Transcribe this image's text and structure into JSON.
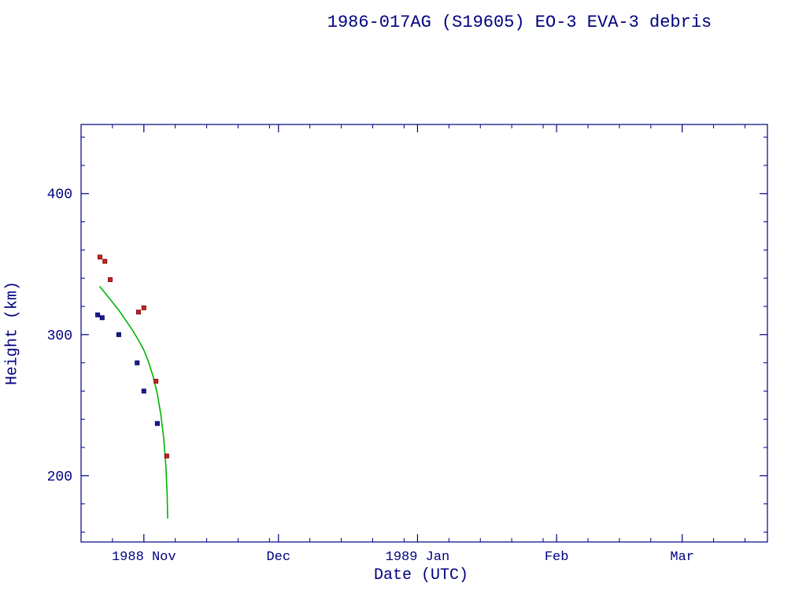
{
  "chart_data": {
    "type": "scatter",
    "title": "1986-017AG (S19605) EO-3 EVA-3 debris",
    "xlabel": "Date (UTC)",
    "ylabel": "Height (km)",
    "marker_size": 5,
    "grid": false,
    "legend": "none",
    "colors": {
      "frame": "#000080",
      "text": "#000080",
      "background": "#ffffff",
      "red_series": "#cc2020",
      "blue_series": "#1c1c8f",
      "green_line": "#00b400"
    },
    "x_axis": {
      "label": "Date (UTC)",
      "unit": "days (0 = plot left edge, approx 1988 Oct 18)",
      "range": [
        0,
        153
      ],
      "major_ticks": [
        {
          "pos": 14,
          "label": "1988 Nov"
        },
        {
          "pos": 44,
          "label": "Dec"
        },
        {
          "pos": 75,
          "label": "1989 Jan"
        },
        {
          "pos": 106,
          "label": "Feb"
        },
        {
          "pos": 134,
          "label": "Mar"
        }
      ],
      "minor_ticks": [
        7,
        21,
        28,
        35,
        42,
        51,
        58,
        65,
        72,
        82,
        89,
        96,
        103,
        113,
        120,
        127,
        141,
        148
      ]
    },
    "y_axis": {
      "label": "Height (km)",
      "range": [
        153,
        449
      ],
      "major_ticks": [
        200,
        300,
        400
      ],
      "minor_ticks": [
        160,
        180,
        220,
        240,
        260,
        280,
        320,
        340,
        360,
        380,
        420,
        440
      ]
    },
    "series": [
      {
        "name": "red-square-points",
        "style": "markers",
        "marker": "filled-square",
        "color": "#cc2020",
        "edge_color": "#801010",
        "points": [
          [
            4.2,
            355
          ],
          [
            5.3,
            352
          ],
          [
            6.5,
            339
          ],
          [
            12.8,
            316
          ],
          [
            14.0,
            319
          ],
          [
            16.7,
            267
          ],
          [
            19.1,
            214
          ]
        ]
      },
      {
        "name": "blue-square-points",
        "style": "markers",
        "marker": "filled-square",
        "color": "#1c1c8f",
        "edge_color": "#000060",
        "points": [
          [
            3.7,
            314
          ],
          [
            4.7,
            312
          ],
          [
            8.4,
            300
          ],
          [
            12.5,
            280
          ],
          [
            14.0,
            260
          ],
          [
            17.0,
            237
          ]
        ]
      },
      {
        "name": "green-decay-curve",
        "style": "line",
        "color": "#00b400",
        "points": [
          [
            4.2,
            334
          ],
          [
            5.5,
            329
          ],
          [
            7.0,
            323
          ],
          [
            8.5,
            317
          ],
          [
            10.0,
            310
          ],
          [
            11.5,
            303
          ],
          [
            12.8,
            296
          ],
          [
            14.0,
            289
          ],
          [
            15.0,
            281
          ],
          [
            16.0,
            271
          ],
          [
            17.0,
            258
          ],
          [
            17.8,
            243
          ],
          [
            18.4,
            227
          ],
          [
            18.9,
            207
          ],
          [
            19.2,
            186
          ],
          [
            19.3,
            170
          ]
        ]
      }
    ]
  }
}
